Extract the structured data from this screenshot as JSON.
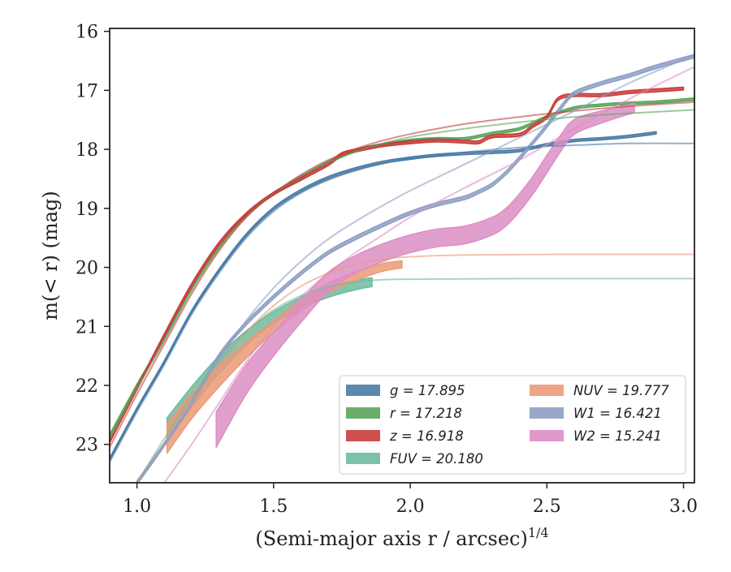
{
  "chart_data": {
    "type": "line",
    "xlabel": "(Semi-major axis r / arcsec)",
    "xlabel_exponent": "1/4",
    "ylabel": "m(< r) (mag)",
    "xlim": [
      0.9,
      3.04
    ],
    "ylim": [
      23.65,
      15.95
    ],
    "y_inverted": true,
    "grid": false,
    "legend_position": "lower-right",
    "x_ticks": [
      "1.0",
      "1.5",
      "2.0",
      "2.5",
      "3.0"
    ],
    "y_ticks": [
      "16",
      "17",
      "18",
      "19",
      "20",
      "21",
      "22",
      "23"
    ],
    "series": [
      {
        "name": "g = 17.895",
        "color": "#4a7ba6",
        "band": [
          [
            0.9,
            23.25
          ],
          [
            1.0,
            22.4
          ],
          [
            1.1,
            21.6
          ],
          [
            1.2,
            20.75
          ],
          [
            1.3,
            20.05
          ],
          [
            1.4,
            19.45
          ],
          [
            1.5,
            19.0
          ],
          [
            1.6,
            18.7
          ],
          [
            1.7,
            18.48
          ],
          [
            1.8,
            18.33
          ],
          [
            1.9,
            18.22
          ],
          [
            2.0,
            18.15
          ],
          [
            2.1,
            18.1
          ],
          [
            2.2,
            18.07
          ],
          [
            2.3,
            18.05
          ],
          [
            2.4,
            18.02
          ],
          [
            2.5,
            17.92
          ],
          [
            2.6,
            17.85
          ],
          [
            2.7,
            17.82
          ],
          [
            2.8,
            17.78
          ],
          [
            2.9,
            17.72
          ]
        ],
        "band_width": 0.04,
        "model": [
          [
            0.9,
            23.3
          ],
          [
            1.0,
            22.45
          ],
          [
            1.1,
            21.65
          ],
          [
            1.2,
            20.8
          ],
          [
            1.3,
            20.1
          ],
          [
            1.4,
            19.5
          ],
          [
            1.5,
            19.05
          ],
          [
            1.6,
            18.74
          ],
          [
            1.7,
            18.52
          ],
          [
            1.8,
            18.36
          ],
          [
            1.9,
            18.24
          ],
          [
            2.0,
            18.15
          ],
          [
            2.2,
            18.05
          ],
          [
            2.4,
            17.97
          ],
          [
            2.6,
            17.93
          ],
          [
            2.8,
            17.9
          ],
          [
            3.04,
            17.9
          ]
        ]
      },
      {
        "name": "r = 17.218",
        "color": "#5ba55b",
        "band": [
          [
            0.9,
            22.85
          ],
          [
            1.0,
            22.0
          ],
          [
            1.1,
            21.2
          ],
          [
            1.2,
            20.35
          ],
          [
            1.3,
            19.65
          ],
          [
            1.4,
            19.1
          ],
          [
            1.5,
            18.75
          ],
          [
            1.6,
            18.47
          ],
          [
            1.7,
            18.22
          ],
          [
            1.8,
            18.02
          ],
          [
            1.9,
            17.92
          ],
          [
            2.0,
            17.85
          ],
          [
            2.1,
            17.82
          ],
          [
            2.2,
            17.82
          ],
          [
            2.3,
            17.73
          ],
          [
            2.4,
            17.65
          ],
          [
            2.5,
            17.45
          ],
          [
            2.6,
            17.3
          ],
          [
            2.7,
            17.25
          ],
          [
            2.8,
            17.22
          ],
          [
            2.9,
            17.2
          ],
          [
            3.04,
            17.15
          ]
        ],
        "band_width": 0.04,
        "model": [
          [
            0.9,
            22.9
          ],
          [
            1.0,
            22.05
          ],
          [
            1.1,
            21.25
          ],
          [
            1.2,
            20.4
          ],
          [
            1.3,
            19.7
          ],
          [
            1.4,
            19.15
          ],
          [
            1.5,
            18.75
          ],
          [
            1.6,
            18.45
          ],
          [
            1.7,
            18.22
          ],
          [
            1.8,
            18.04
          ],
          [
            1.9,
            17.9
          ],
          [
            2.0,
            17.79
          ],
          [
            2.2,
            17.65
          ],
          [
            2.4,
            17.54
          ],
          [
            2.6,
            17.45
          ],
          [
            2.8,
            17.39
          ],
          [
            3.04,
            17.33
          ]
        ]
      },
      {
        "name": "z = 16.918",
        "color": "#c93d3d",
        "band": [
          [
            0.9,
            22.95
          ],
          [
            1.0,
            22.05
          ],
          [
            1.1,
            21.15
          ],
          [
            1.2,
            20.3
          ],
          [
            1.3,
            19.6
          ],
          [
            1.4,
            19.1
          ],
          [
            1.5,
            18.75
          ],
          [
            1.6,
            18.5
          ],
          [
            1.7,
            18.25
          ],
          [
            1.75,
            18.08
          ],
          [
            1.8,
            18.02
          ],
          [
            1.9,
            17.93
          ],
          [
            2.0,
            17.88
          ],
          [
            2.1,
            17.85
          ],
          [
            2.2,
            17.87
          ],
          [
            2.25,
            17.88
          ],
          [
            2.3,
            17.78
          ],
          [
            2.4,
            17.75
          ],
          [
            2.45,
            17.6
          ],
          [
            2.5,
            17.45
          ],
          [
            2.54,
            17.15
          ],
          [
            2.6,
            17.08
          ],
          [
            2.7,
            17.08
          ],
          [
            2.8,
            17.03
          ],
          [
            2.9,
            17.0
          ],
          [
            3.0,
            16.97
          ]
        ],
        "band_width": 0.05,
        "model": [
          [
            0.9,
            23.05
          ],
          [
            1.0,
            22.15
          ],
          [
            1.1,
            21.3
          ],
          [
            1.2,
            20.45
          ],
          [
            1.3,
            19.72
          ],
          [
            1.4,
            19.15
          ],
          [
            1.5,
            18.75
          ],
          [
            1.6,
            18.43
          ],
          [
            1.7,
            18.18
          ],
          [
            1.8,
            17.99
          ],
          [
            1.9,
            17.85
          ],
          [
            2.0,
            17.74
          ],
          [
            2.2,
            17.57
          ],
          [
            2.4,
            17.45
          ],
          [
            2.6,
            17.35
          ],
          [
            2.8,
            17.27
          ],
          [
            3.04,
            17.2
          ]
        ]
      },
      {
        "name": "FUV = 20.180",
        "color": "#6dbb9f",
        "band": [
          [
            1.11,
            22.75
          ],
          [
            1.2,
            22.2
          ],
          [
            1.3,
            21.65
          ],
          [
            1.4,
            21.2
          ],
          [
            1.5,
            20.85
          ],
          [
            1.6,
            20.6
          ],
          [
            1.7,
            20.42
          ],
          [
            1.8,
            20.3
          ],
          [
            1.86,
            20.25
          ]
        ],
        "band_width_points": [
          [
            1.11,
            0.4
          ],
          [
            1.3,
            0.3
          ],
          [
            1.5,
            0.2
          ],
          [
            1.86,
            0.15
          ]
        ],
        "model": [
          [
            1.0,
            23.65
          ],
          [
            1.1,
            22.9
          ],
          [
            1.2,
            22.2
          ],
          [
            1.3,
            21.6
          ],
          [
            1.4,
            21.1
          ],
          [
            1.5,
            20.72
          ],
          [
            1.6,
            20.48
          ],
          [
            1.7,
            20.33
          ],
          [
            1.8,
            20.25
          ],
          [
            1.9,
            20.21
          ],
          [
            2.0,
            20.2
          ],
          [
            2.4,
            20.19
          ],
          [
            3.04,
            20.19
          ]
        ]
      },
      {
        "name": "NUV = 19.777",
        "color": "#eb9a78",
        "band": [
          [
            1.11,
            22.9
          ],
          [
            1.2,
            22.35
          ],
          [
            1.3,
            21.85
          ],
          [
            1.4,
            21.4
          ],
          [
            1.5,
            21.0
          ],
          [
            1.6,
            20.65
          ],
          [
            1.7,
            20.35
          ],
          [
            1.8,
            20.15
          ],
          [
            1.9,
            20.0
          ],
          [
            1.97,
            19.95
          ]
        ],
        "band_width_points": [
          [
            1.11,
            0.5
          ],
          [
            1.3,
            0.35
          ],
          [
            1.5,
            0.2
          ],
          [
            1.97,
            0.12
          ]
        ],
        "model": [
          [
            1.0,
            23.65
          ],
          [
            1.1,
            23.0
          ],
          [
            1.2,
            22.3
          ],
          [
            1.3,
            21.65
          ],
          [
            1.4,
            21.1
          ],
          [
            1.5,
            20.65
          ],
          [
            1.6,
            20.32
          ],
          [
            1.7,
            20.1
          ],
          [
            1.8,
            19.95
          ],
          [
            1.9,
            19.86
          ],
          [
            2.0,
            19.82
          ],
          [
            2.2,
            19.79
          ],
          [
            2.6,
            19.78
          ],
          [
            3.04,
            19.78
          ]
        ]
      },
      {
        "name": "W1 = 16.421",
        "color": "#8e9fc4",
        "band": [
          [
            1.0,
            23.65
          ],
          [
            1.1,
            23.0
          ],
          [
            1.2,
            22.3
          ],
          [
            1.3,
            21.5
          ],
          [
            1.4,
            20.95
          ],
          [
            1.5,
            20.5
          ],
          [
            1.6,
            20.1
          ],
          [
            1.7,
            19.75
          ],
          [
            1.8,
            19.5
          ],
          [
            1.9,
            19.28
          ],
          [
            2.0,
            19.08
          ],
          [
            2.1,
            18.93
          ],
          [
            2.2,
            18.82
          ],
          [
            2.25,
            18.72
          ],
          [
            2.3,
            18.6
          ],
          [
            2.35,
            18.4
          ],
          [
            2.4,
            18.15
          ],
          [
            2.45,
            17.88
          ],
          [
            2.5,
            17.6
          ],
          [
            2.55,
            17.3
          ],
          [
            2.6,
            17.05
          ],
          [
            2.7,
            16.88
          ],
          [
            2.8,
            16.75
          ],
          [
            2.9,
            16.6
          ],
          [
            3.04,
            16.42
          ]
        ],
        "band_width": 0.06,
        "model": [
          [
            1.0,
            23.65
          ],
          [
            1.1,
            23.0
          ],
          [
            1.2,
            22.3
          ],
          [
            1.3,
            21.55
          ],
          [
            1.4,
            20.9
          ],
          [
            1.5,
            20.35
          ],
          [
            1.6,
            19.9
          ],
          [
            1.7,
            19.52
          ],
          [
            1.8,
            19.22
          ],
          [
            1.9,
            18.95
          ],
          [
            2.0,
            18.7
          ],
          [
            2.2,
            18.25
          ],
          [
            2.4,
            17.8
          ],
          [
            2.6,
            17.35
          ],
          [
            2.8,
            16.88
          ],
          [
            3.04,
            16.4
          ]
        ]
      },
      {
        "name": "W2 = 15.241",
        "color": "#dc8ec4",
        "band": [
          [
            1.29,
            22.75
          ],
          [
            1.4,
            21.9
          ],
          [
            1.5,
            21.3
          ],
          [
            1.6,
            20.75
          ],
          [
            1.7,
            20.25
          ],
          [
            1.8,
            19.95
          ],
          [
            1.9,
            19.75
          ],
          [
            2.0,
            19.6
          ],
          [
            2.1,
            19.5
          ],
          [
            2.2,
            19.45
          ],
          [
            2.3,
            19.3
          ],
          [
            2.35,
            19.15
          ],
          [
            2.4,
            18.9
          ],
          [
            2.45,
            18.6
          ],
          [
            2.5,
            18.25
          ],
          [
            2.55,
            17.9
          ],
          [
            2.6,
            17.62
          ],
          [
            2.7,
            17.45
          ],
          [
            2.82,
            17.3
          ]
        ],
        "band_width_points": [
          [
            1.29,
            0.6
          ],
          [
            1.5,
            0.4
          ],
          [
            1.8,
            0.3
          ],
          [
            2.2,
            0.3
          ],
          [
            2.5,
            0.3
          ],
          [
            2.82,
            0.15
          ]
        ],
        "model": [
          [
            1.1,
            23.65
          ],
          [
            1.2,
            23.0
          ],
          [
            1.3,
            22.3
          ],
          [
            1.4,
            21.6
          ],
          [
            1.5,
            21.0
          ],
          [
            1.6,
            20.5
          ],
          [
            1.7,
            20.1
          ],
          [
            1.8,
            19.75
          ],
          [
            1.9,
            19.45
          ],
          [
            2.0,
            19.15
          ],
          [
            2.2,
            18.65
          ],
          [
            2.4,
            18.18
          ],
          [
            2.6,
            17.65
          ],
          [
            2.8,
            17.15
          ],
          [
            3.04,
            16.6
          ]
        ]
      }
    ]
  }
}
